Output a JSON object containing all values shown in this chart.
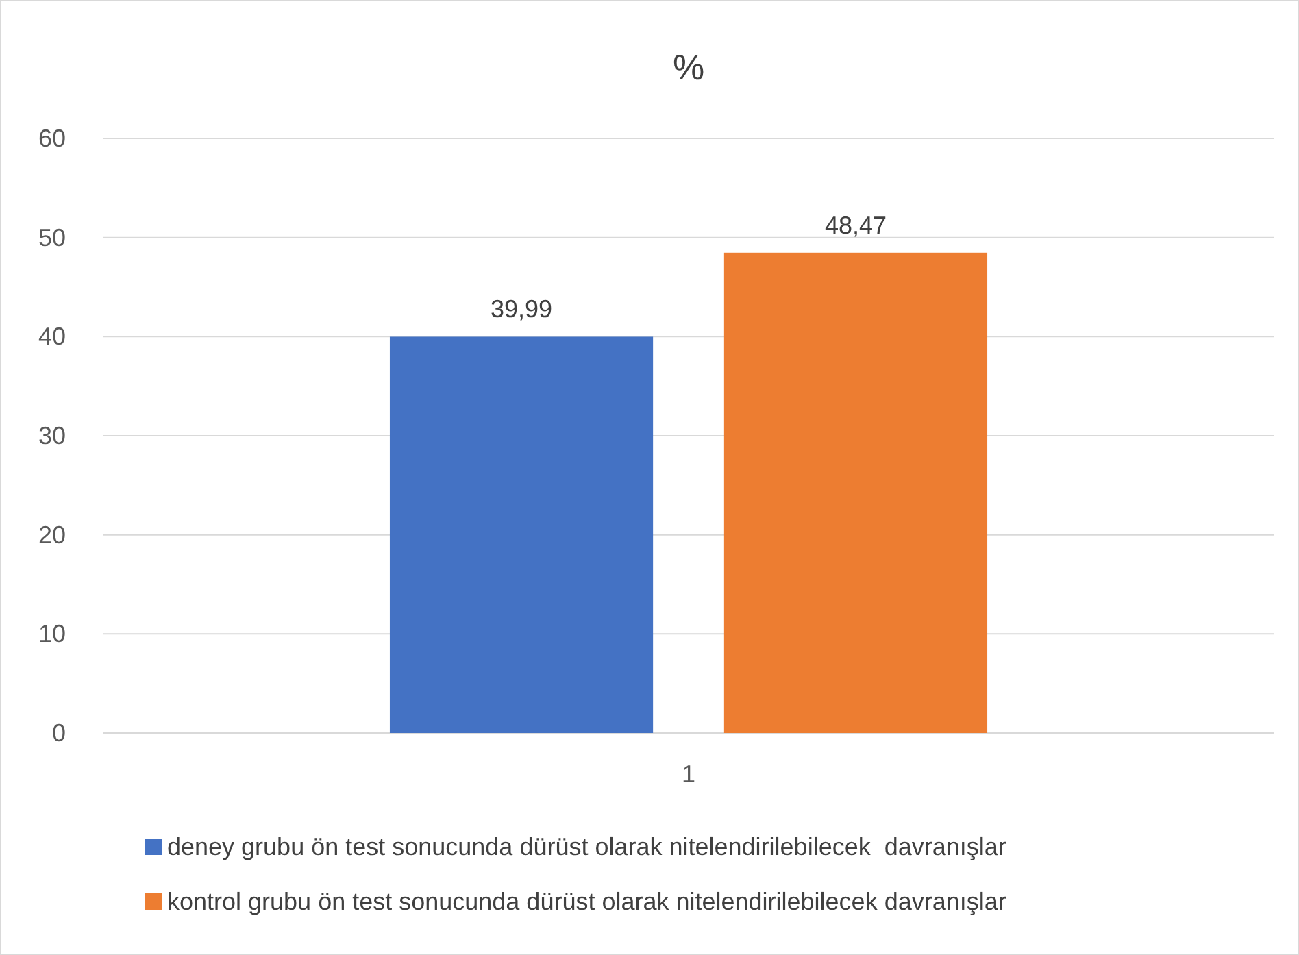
{
  "chart_data": {
    "type": "bar",
    "title": "%",
    "categories": [
      "1"
    ],
    "series": [
      {
        "name": "deney grubu ön test sonucunda dürüst olarak nitelendirilebilecek  davranışlar",
        "color": "#4472c4",
        "values": [
          39.99
        ]
      },
      {
        "name": "kontrol grubu ön test sonucunda dürüst olarak nitelendirilebilecek davranışlar",
        "color": "#ed7d31",
        "values": [
          48.47
        ]
      }
    ],
    "value_labels": [
      [
        "39,99"
      ],
      [
        "48,47"
      ]
    ],
    "ylim": [
      0,
      60
    ],
    "yticks": [
      0,
      10,
      20,
      30,
      40,
      50,
      60
    ],
    "grid": "y",
    "legend": "bottom"
  }
}
